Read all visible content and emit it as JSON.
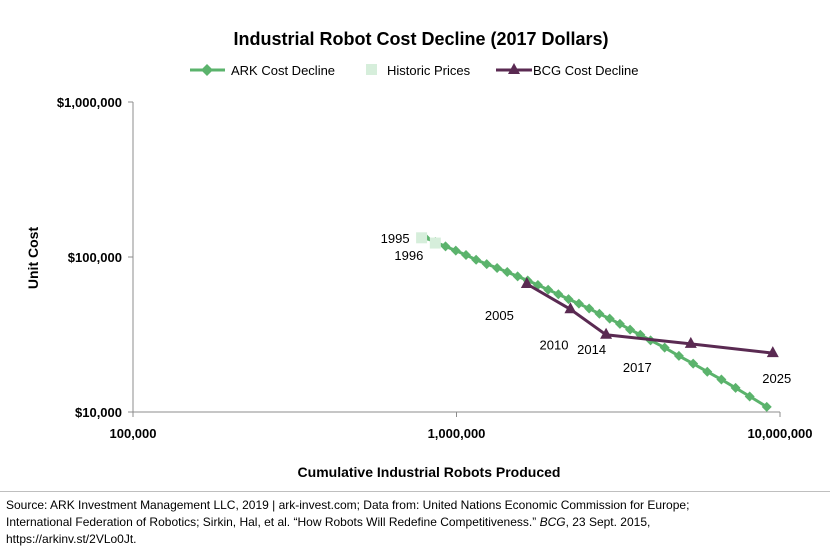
{
  "chart_data": {
    "type": "line",
    "title": "Industrial Robot Cost Decline (2017 Dollars)",
    "xlabel": "Cumulative Industrial Robots Produced",
    "ylabel": "Unit Cost",
    "x_scale": "log",
    "y_scale": "log",
    "xlim": [
      100000,
      10000000
    ],
    "ylim": [
      10000,
      1000000
    ],
    "x_ticks": [
      100000,
      1000000,
      10000000
    ],
    "x_tick_labels": [
      "100,000",
      "1,000,000",
      "10,000,000"
    ],
    "y_ticks": [
      10000,
      100000,
      1000000
    ],
    "y_tick_labels": [
      "$10,000",
      "$100,000",
      "$1,000,000"
    ],
    "legend": {
      "placement": "top",
      "entries": [
        "ARK Cost Decline",
        "Historic Prices",
        "BCG Cost Decline"
      ]
    },
    "series": [
      {
        "name": "ARK Cost Decline",
        "color": "#5bb36c",
        "marker": "diamond",
        "x": [
          800000,
          860000,
          925000,
          995000,
          1070000,
          1150000,
          1240000,
          1335000,
          1435000,
          1545000,
          1660000,
          1785000,
          1920000,
          2065000,
          2220000,
          2390000,
          2570000,
          2765000,
          2975000,
          3200000,
          3440000,
          3700000,
          3980000,
          4400000,
          4870000,
          5390000,
          5960000,
          6590000,
          7290000,
          8060000,
          9100000
        ],
        "y": [
          133000,
          125000,
          117000,
          110000,
          103000,
          96000,
          90000,
          85000,
          80000,
          75000,
          70500,
          66000,
          61500,
          57500,
          53500,
          50000,
          46500,
          43000,
          40000,
          37000,
          34000,
          31500,
          29000,
          26000,
          23000,
          20500,
          18200,
          16200,
          14300,
          12600,
          10800
        ]
      },
      {
        "name": "Historic Prices",
        "color": "#d6eedb",
        "marker": "square",
        "x": [
          780000,
          860000
        ],
        "y": [
          133000,
          123000
        ]
      },
      {
        "name": "BCG Cost Decline",
        "color": "#5a2a52",
        "marker": "triangle",
        "x": [
          1650000,
          2250000,
          2900000,
          5300000,
          9500000
        ],
        "y": [
          67000,
          46000,
          31500,
          27500,
          24000
        ]
      }
    ],
    "annotations": [
      {
        "text": "1995",
        "x": 780000,
        "y": 133000
      },
      {
        "text": "1996",
        "x": 860000,
        "y": 123000
      },
      {
        "text": "2005",
        "x": 1650000,
        "y": 67000
      },
      {
        "text": "2010",
        "x": 2250000,
        "y": 46000
      },
      {
        "text": "2014",
        "x": 2900000,
        "y": 31500
      },
      {
        "text": "2017",
        "x": 3700000,
        "y": 31500
      },
      {
        "text": "2025",
        "x": 9100000,
        "y": 10800
      }
    ]
  },
  "source": {
    "line1": "Source: ARK Investment Management LLC, 2019 | ark-invest.com;  Data from: United Nations Economic Commission for Europe;",
    "line2_plain": "International Federation of Robotics; Sirkin, Hal, et al. “How Robots Will Redefine Competitiveness.” ",
    "line2_italic": "BCG",
    "line2_end": ", 23 Sept. 2015,",
    "line3": "https://arkinv.st/2VLo0Jt."
  }
}
